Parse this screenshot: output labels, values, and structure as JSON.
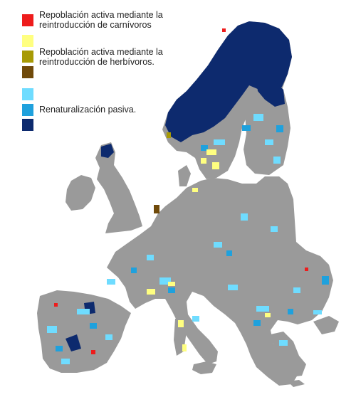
{
  "legend": {
    "groups": [
      {
        "label_line1": "Repoblación activa mediante la",
        "label_line2": "reintroducción de carnívoros",
        "colors": [
          "#ee1c1c"
        ]
      },
      {
        "label_line1": "Repoblación activa mediante la",
        "label_line2": "reintroducción de herbívoros.",
        "colors": [
          "#ffff80",
          "#a79a05",
          "#704a0a"
        ]
      },
      {
        "label_line1": "Renaturalización pasiva.",
        "label_line2": "",
        "colors": [
          "#6fdcff",
          "#1fa1dd",
          "#0d2a6e"
        ]
      }
    ]
  },
  "map": {
    "base_color": "#9a9a9a",
    "background": "#ffffff",
    "border_color": "#ffffff"
  }
}
